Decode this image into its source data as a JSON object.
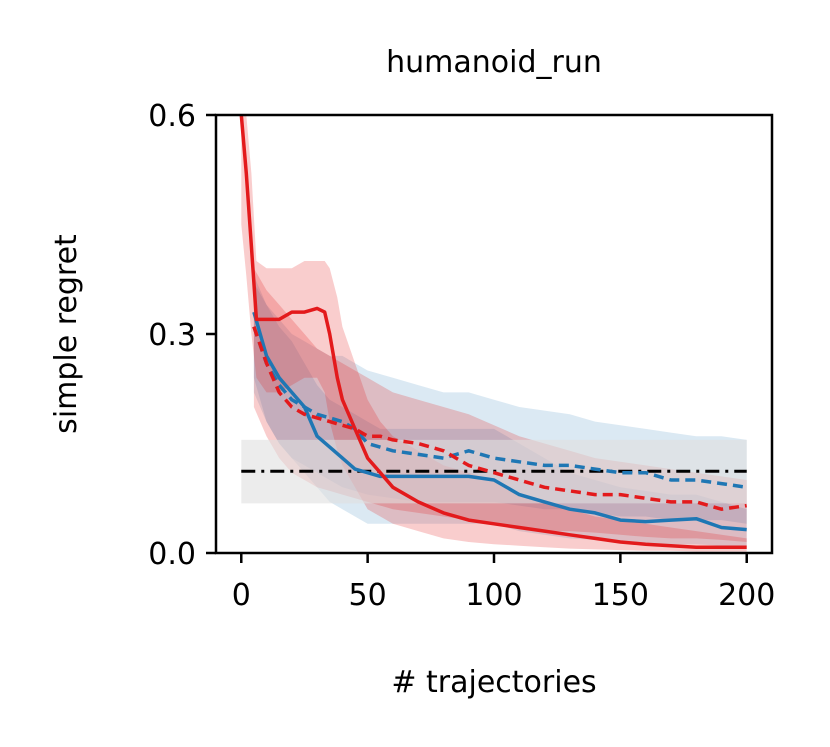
{
  "chart_data": {
    "type": "line",
    "title": "humanoid_run",
    "xlabel": "# trajectories",
    "ylabel": "simple regret",
    "xlim": [
      -10,
      210
    ],
    "ylim": [
      0.0,
      0.6
    ],
    "x_ticks": [
      0,
      50,
      100,
      150,
      200
    ],
    "x_tick_labels": [
      "0",
      "50",
      "100",
      "150",
      "200"
    ],
    "y_ticks": [
      0.0,
      0.3,
      0.6
    ],
    "y_tick_labels": [
      "0.0",
      "0.3",
      "0.6"
    ],
    "grid": false,
    "legend": "none",
    "baseline": {
      "value": 0.112,
      "band": [
        0.068,
        0.155
      ],
      "x_range": [
        0,
        200
      ],
      "style": "dash-dot",
      "color": "#000000",
      "band_color": "#e0e0e0"
    },
    "series": [
      {
        "color": "#1f77b4",
        "style": "solid",
        "x": [
          5,
          10,
          15,
          20,
          25,
          30,
          35,
          40,
          45,
          50,
          55,
          60,
          70,
          80,
          90,
          100,
          110,
          120,
          130,
          140,
          150,
          160,
          170,
          180,
          190,
          200
        ],
        "y": [
          0.33,
          0.27,
          0.24,
          0.22,
          0.2,
          0.16,
          0.145,
          0.13,
          0.115,
          0.11,
          0.105,
          0.105,
          0.105,
          0.105,
          0.105,
          0.1,
          0.08,
          0.07,
          0.06,
          0.055,
          0.045,
          0.043,
          0.045,
          0.047,
          0.035,
          0.032
        ],
        "lower": [
          0.24,
          0.18,
          0.15,
          0.13,
          0.11,
          0.09,
          0.07,
          0.06,
          0.05,
          0.04,
          0.04,
          0.04,
          0.04,
          0.04,
          0.04,
          0.04,
          0.03,
          0.025,
          0.02,
          0.018,
          0.015,
          0.012,
          0.012,
          0.012,
          0.01,
          0.01
        ],
        "upper": [
          0.38,
          0.34,
          0.31,
          0.29,
          0.26,
          0.23,
          0.21,
          0.2,
          0.19,
          0.18,
          0.17,
          0.17,
          0.17,
          0.17,
          0.17,
          0.17,
          0.15,
          0.13,
          0.11,
          0.1,
          0.09,
          0.085,
          0.08,
          0.08,
          0.07,
          0.06
        ]
      },
      {
        "color": "#1f77b4",
        "style": "dashed",
        "x": [
          5,
          10,
          15,
          20,
          25,
          30,
          35,
          40,
          45,
          50,
          60,
          70,
          80,
          90,
          100,
          110,
          120,
          130,
          140,
          150,
          160,
          170,
          180,
          190,
          200
        ],
        "y": [
          0.31,
          0.26,
          0.23,
          0.21,
          0.2,
          0.19,
          0.185,
          0.18,
          0.17,
          0.15,
          0.14,
          0.135,
          0.13,
          0.14,
          0.13,
          0.125,
          0.12,
          0.12,
          0.115,
          0.11,
          0.11,
          0.1,
          0.1,
          0.095,
          0.09
        ],
        "lower": [
          0.22,
          0.18,
          0.15,
          0.13,
          0.12,
          0.11,
          0.1,
          0.09,
          0.085,
          0.08,
          0.075,
          0.07,
          0.07,
          0.07,
          0.07,
          0.065,
          0.06,
          0.06,
          0.055,
          0.05,
          0.05,
          0.045,
          0.045,
          0.045,
          0.04
        ],
        "upper": [
          0.37,
          0.34,
          0.32,
          0.3,
          0.29,
          0.28,
          0.27,
          0.27,
          0.26,
          0.25,
          0.24,
          0.23,
          0.22,
          0.22,
          0.21,
          0.2,
          0.195,
          0.19,
          0.18,
          0.175,
          0.17,
          0.165,
          0.16,
          0.16,
          0.155
        ]
      },
      {
        "color": "#e31a1c",
        "style": "solid",
        "x": [
          0,
          2,
          4,
          6,
          10,
          15,
          20,
          25,
          30,
          33,
          35,
          38,
          40,
          45,
          50,
          55,
          60,
          70,
          80,
          90,
          100,
          110,
          120,
          130,
          140,
          150,
          160,
          170,
          180,
          190,
          200
        ],
        "y": [
          0.6,
          0.52,
          0.42,
          0.32,
          0.32,
          0.32,
          0.33,
          0.33,
          0.335,
          0.33,
          0.3,
          0.24,
          0.21,
          0.17,
          0.13,
          0.11,
          0.09,
          0.07,
          0.055,
          0.045,
          0.04,
          0.035,
          0.03,
          0.025,
          0.02,
          0.015,
          0.012,
          0.01,
          0.008,
          0.008,
          0.008
        ],
        "lower": [
          0.45,
          0.38,
          0.3,
          0.24,
          0.22,
          0.22,
          0.23,
          0.24,
          0.24,
          0.22,
          0.18,
          0.14,
          0.12,
          0.09,
          0.06,
          0.05,
          0.04,
          0.03,
          0.02,
          0.015,
          0.012,
          0.01,
          0.008,
          0.006,
          0.005,
          0.004,
          0.003,
          0.003,
          0.002,
          0.002,
          0.002
        ],
        "upper": [
          0.6,
          0.6,
          0.52,
          0.4,
          0.39,
          0.39,
          0.39,
          0.4,
          0.4,
          0.4,
          0.39,
          0.35,
          0.31,
          0.26,
          0.21,
          0.18,
          0.16,
          0.14,
          0.12,
          0.11,
          0.1,
          0.08,
          0.07,
          0.06,
          0.05,
          0.045,
          0.04,
          0.035,
          0.03,
          0.025,
          0.02
        ]
      },
      {
        "color": "#e31a1c",
        "style": "dashed",
        "x": [
          5,
          10,
          15,
          20,
          25,
          30,
          35,
          40,
          45,
          50,
          55,
          60,
          70,
          80,
          90,
          100,
          110,
          120,
          130,
          140,
          150,
          160,
          170,
          180,
          190,
          200
        ],
        "y": [
          0.31,
          0.26,
          0.22,
          0.2,
          0.19,
          0.185,
          0.18,
          0.175,
          0.17,
          0.16,
          0.16,
          0.155,
          0.15,
          0.14,
          0.12,
          0.11,
          0.1,
          0.09,
          0.085,
          0.08,
          0.08,
          0.075,
          0.07,
          0.07,
          0.06,
          0.065
        ],
        "lower": [
          0.2,
          0.16,
          0.13,
          0.11,
          0.1,
          0.09,
          0.085,
          0.08,
          0.075,
          0.07,
          0.065,
          0.06,
          0.055,
          0.05,
          0.045,
          0.04,
          0.035,
          0.03,
          0.03,
          0.028,
          0.025,
          0.022,
          0.02,
          0.02,
          0.018,
          0.015
        ],
        "upper": [
          0.39,
          0.36,
          0.34,
          0.32,
          0.3,
          0.28,
          0.27,
          0.26,
          0.25,
          0.24,
          0.23,
          0.22,
          0.21,
          0.2,
          0.19,
          0.175,
          0.16,
          0.15,
          0.14,
          0.13,
          0.125,
          0.12,
          0.115,
          0.11,
          0.105,
          0.1
        ]
      }
    ]
  }
}
